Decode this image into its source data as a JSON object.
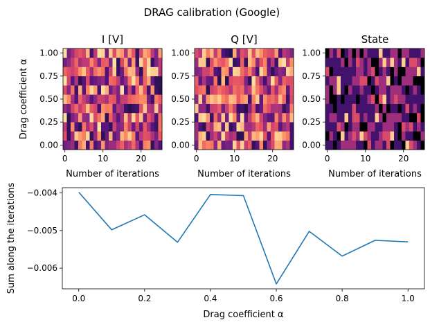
{
  "figure": {
    "suptitle": "DRAG calibration (Google)"
  },
  "chart_data": [
    {
      "type": "heatmap",
      "title": "I [V]",
      "xlabel": "Number of iterations",
      "ylabel": "Drag coefficient α",
      "xticks": [
        "0",
        "10",
        "20"
      ],
      "yticks": [
        "0.00",
        "0.25",
        "0.50",
        "0.75",
        "1.00"
      ],
      "xlim": [
        -0.5,
        25.5
      ],
      "ylim": [
        -0.05,
        1.05
      ],
      "x": [
        0,
        1,
        2,
        3,
        4,
        5,
        6,
        7,
        8,
        9,
        10,
        11,
        12,
        13,
        14,
        15,
        16,
        17,
        18,
        19,
        20,
        21,
        22,
        23,
        24,
        25
      ],
      "y": [
        0.0,
        0.1,
        0.2,
        0.3,
        0.4,
        0.5,
        0.6,
        0.7,
        0.8,
        0.9,
        1.0
      ],
      "colormap": "magma",
      "seed": 11
    },
    {
      "type": "heatmap",
      "title": "Q [V]",
      "xlabel": "Number of iterations",
      "xticks": [
        "0",
        "10",
        "20"
      ],
      "yticks": [
        "0.00",
        "0.25",
        "0.50",
        "0.75",
        "1.00"
      ],
      "xlim": [
        -0.5,
        25.5
      ],
      "ylim": [
        -0.05,
        1.05
      ],
      "x": [
        0,
        1,
        2,
        3,
        4,
        5,
        6,
        7,
        8,
        9,
        10,
        11,
        12,
        13,
        14,
        15,
        16,
        17,
        18,
        19,
        20,
        21,
        22,
        23,
        24,
        25
      ],
      "y": [
        0.0,
        0.1,
        0.2,
        0.3,
        0.4,
        0.5,
        0.6,
        0.7,
        0.8,
        0.9,
        1.0
      ],
      "colormap": "magma",
      "seed": 29
    },
    {
      "type": "heatmap",
      "title": "State",
      "xlabel": "Number of iterations",
      "xticks": [
        "0",
        "10",
        "20"
      ],
      "yticks": [
        "0.00",
        "0.25",
        "0.50",
        "0.75",
        "1.00"
      ],
      "xlim": [
        -0.5,
        25.5
      ],
      "ylim": [
        -0.05,
        1.05
      ],
      "x": [
        0,
        1,
        2,
        3,
        4,
        5,
        6,
        7,
        8,
        9,
        10,
        11,
        12,
        13,
        14,
        15,
        16,
        17,
        18,
        19,
        20,
        21,
        22,
        23,
        24,
        25
      ],
      "y": [
        0.0,
        0.1,
        0.2,
        0.3,
        0.4,
        0.5,
        0.6,
        0.7,
        0.8,
        0.9,
        1.0
      ],
      "colormap": "magma",
      "seed": 47
    },
    {
      "type": "line",
      "xlabel": "Drag coefficient α",
      "ylabel": "Sum along the iterations",
      "x": [
        0.0,
        0.1,
        0.2,
        0.3,
        0.4,
        0.5,
        0.6,
        0.7,
        0.8,
        0.9,
        1.0
      ],
      "y": [
        -0.00398,
        -0.00498,
        -0.00458,
        -0.00531,
        -0.00404,
        -0.00407,
        -0.00642,
        -0.00502,
        -0.00568,
        -0.00526,
        -0.0053
      ],
      "xticks": [
        "0.0",
        "0.2",
        "0.4",
        "0.6",
        "0.8",
        "1.0"
      ],
      "yticks": [
        "-0.004",
        "-0.005",
        "-0.006"
      ],
      "xlim": [
        -0.05,
        1.05
      ],
      "ylim": [
        -0.00655,
        -0.00386
      ],
      "color": "#1f77b4",
      "grid": false
    }
  ]
}
